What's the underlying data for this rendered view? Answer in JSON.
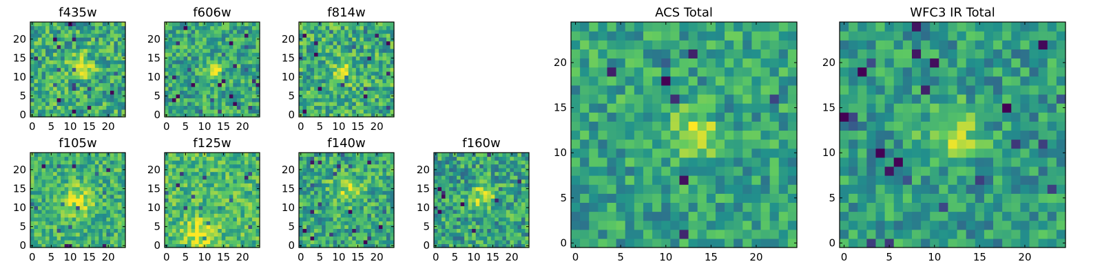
{
  "figure": {
    "colormap": "viridis",
    "colormap_stops": [
      "#440154",
      "#3b528b",
      "#21918c",
      "#5ec962",
      "#fde725"
    ]
  },
  "chart_data": [
    {
      "type": "heatmap",
      "title": "f435w",
      "grid_size": [
        25,
        25
      ],
      "x_ticks": [
        0,
        5,
        10,
        15,
        20
      ],
      "y_ticks": [
        0,
        5,
        10,
        15,
        20
      ],
      "xlim": [
        -0.5,
        24.5
      ],
      "ylim": [
        -0.5,
        24.5
      ],
      "peak": {
        "x": 13,
        "y": 13,
        "radius": 3,
        "amplitude": 0.28
      },
      "noise_level": 0.24,
      "background_level": 0.62
    },
    {
      "type": "heatmap",
      "title": "f606w",
      "grid_size": [
        25,
        25
      ],
      "x_ticks": [
        0,
        5,
        10,
        15,
        20
      ],
      "y_ticks": [
        0,
        5,
        10,
        15,
        20
      ],
      "xlim": [
        -0.5,
        24.5
      ],
      "ylim": [
        -0.5,
        24.5
      ],
      "peak": {
        "x": 13,
        "y": 12,
        "radius": 2.5,
        "amplitude": 0.35
      },
      "noise_level": 0.22,
      "background_level": 0.6
    },
    {
      "type": "heatmap",
      "title": "f814w",
      "grid_size": [
        25,
        25
      ],
      "x_ticks": [
        0,
        5,
        10,
        15,
        20
      ],
      "y_ticks": [
        0,
        5,
        10,
        15,
        20
      ],
      "xlim": [
        -0.5,
        24.5
      ],
      "ylim": [
        -0.5,
        24.5
      ],
      "peak": {
        "x": 11,
        "y": 11,
        "radius": 3,
        "amplitude": 0.25
      },
      "noise_level": 0.24,
      "background_level": 0.62
    },
    {
      "type": "heatmap",
      "title": "f105w",
      "grid_size": [
        25,
        25
      ],
      "x_ticks": [
        0,
        5,
        10,
        15,
        20
      ],
      "y_ticks": [
        0,
        5,
        10,
        15,
        20
      ],
      "xlim": [
        -0.5,
        24.5
      ],
      "ylim": [
        -0.5,
        24.5
      ],
      "peak": {
        "x": 12,
        "y": 12,
        "radius": 3.5,
        "amplitude": 0.3
      },
      "noise_level": 0.2,
      "background_level": 0.65
    },
    {
      "type": "heatmap",
      "title": "f125w",
      "grid_size": [
        25,
        25
      ],
      "x_ticks": [
        0,
        5,
        10,
        15,
        20
      ],
      "y_ticks": [
        0,
        5,
        10,
        15,
        20
      ],
      "xlim": [
        -0.5,
        24.5
      ],
      "ylim": [
        -0.5,
        24.5
      ],
      "peak": {
        "x": 9,
        "y": 3,
        "radius": 4,
        "amplitude": 0.3
      },
      "noise_level": 0.2,
      "background_level": 0.68
    },
    {
      "type": "heatmap",
      "title": "f140w",
      "grid_size": [
        25,
        25
      ],
      "x_ticks": [
        0,
        5,
        10,
        15,
        20
      ],
      "y_ticks": [
        0,
        5,
        10,
        15,
        20
      ],
      "xlim": [
        -0.5,
        24.5
      ],
      "ylim": [
        -0.5,
        24.5
      ],
      "peak": {
        "x": 12,
        "y": 15,
        "radius": 4,
        "amplitude": 0.25
      },
      "noise_level": 0.22,
      "background_level": 0.6
    },
    {
      "type": "heatmap",
      "title": "f160w",
      "grid_size": [
        25,
        25
      ],
      "x_ticks": [
        0,
        5,
        10,
        15,
        20
      ],
      "y_ticks": [
        0,
        5,
        10,
        15,
        20
      ],
      "xlim": [
        -0.5,
        24.5
      ],
      "ylim": [
        -0.5,
        24.5
      ],
      "peak": {
        "x": 12,
        "y": 13,
        "radius": 3,
        "amplitude": 0.35
      },
      "noise_level": 0.24,
      "background_level": 0.58
    },
    {
      "type": "heatmap",
      "title": "ACS Total",
      "grid_size": [
        25,
        25
      ],
      "x_ticks": [
        0,
        5,
        10,
        15,
        20
      ],
      "y_ticks": [
        0,
        5,
        10,
        15,
        20
      ],
      "xlim": [
        -0.5,
        24.5
      ],
      "ylim": [
        -0.5,
        24.5
      ],
      "peak": {
        "x": 13,
        "y": 12,
        "radius": 2.5,
        "amplitude": 0.38
      },
      "noise_level": 0.2,
      "background_level": 0.58
    },
    {
      "type": "heatmap",
      "title": "WFC3 IR Total",
      "grid_size": [
        25,
        25
      ],
      "x_ticks": [
        0,
        5,
        10,
        15,
        20
      ],
      "y_ticks": [
        0,
        5,
        10,
        15,
        20
      ],
      "xlim": [
        -0.5,
        24.5
      ],
      "ylim": [
        -0.5,
        24.5
      ],
      "peak": {
        "x": 12,
        "y": 12,
        "radius": 3,
        "amplitude": 0.35
      },
      "noise_level": 0.2,
      "background_level": 0.55
    }
  ]
}
